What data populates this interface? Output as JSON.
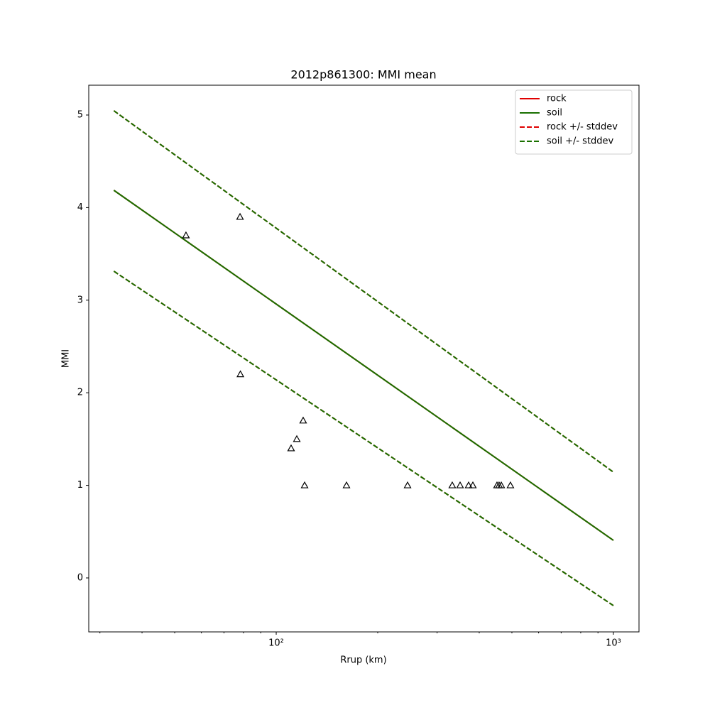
{
  "chart_data": {
    "type": "line",
    "title": "2012p861300: MMI mean",
    "xlabel": "Rrup (km)",
    "ylabel": "MMI",
    "xscale": "log",
    "xlim": [
      27.8,
      1191
    ],
    "ylim": [
      -0.583,
      5.322
    ],
    "xticks": [
      {
        "value": 100,
        "label": "10²"
      },
      {
        "value": 1000,
        "label": "10³"
      }
    ],
    "xminorticks": [
      30,
      40,
      50,
      60,
      70,
      80,
      90,
      200,
      300,
      400,
      500,
      600,
      700,
      800,
      900
    ],
    "yticks": [
      0,
      1,
      2,
      3,
      4,
      5
    ],
    "legend": "upper right",
    "x": [
      33,
      1000
    ],
    "series": [
      {
        "name": "rock",
        "color": "#e00000",
        "style": "solid",
        "values": [
          4.187,
          0.406
        ]
      },
      {
        "name": "soil",
        "color": "#1a7000",
        "style": "solid",
        "values": [
          4.187,
          0.406
        ]
      },
      {
        "name": "rock +/- stddev",
        "color": "#e00000",
        "style": "dashed",
        "values": [
          5.046,
          1.143
        ],
        "values_lower": [
          3.313,
          -0.299
        ]
      },
      {
        "name": "soil +/- stddev",
        "color": "#1a7000",
        "style": "dashed",
        "values": [
          5.046,
          1.143
        ],
        "values_lower": [
          3.313,
          -0.299
        ]
      }
    ],
    "points": {
      "color": "#000000",
      "x": [
        54.0,
        78.1,
        78.3,
        120.2,
        115.1,
        110.7,
        121.4,
        161.6,
        245.2,
        332.7,
        351,
        372,
        383,
        451.6,
        458,
        465,
        495
      ],
      "values": [
        3.7,
        3.9,
        2.2,
        1.7,
        1.5,
        1.4,
        1.0,
        1.0,
        1.0,
        1.0,
        1.0,
        1.0,
        1.0,
        1.0,
        1.0,
        1.0,
        1.0
      ]
    }
  }
}
